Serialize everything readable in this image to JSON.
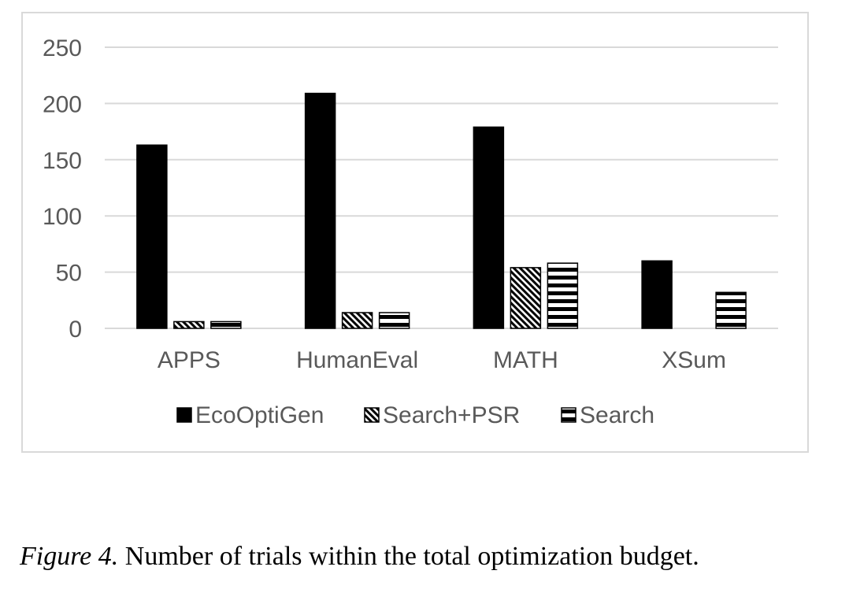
{
  "chart_data": {
    "type": "bar",
    "categories": [
      "APPS",
      "HumanEval",
      "MATH",
      "XSum"
    ],
    "series": [
      {
        "name": "EcoOptiGen",
        "values": [
          163,
          209,
          179,
          60
        ],
        "pattern": "solid"
      },
      {
        "name": "Search+PSR",
        "values": [
          6,
          14,
          54,
          null
        ],
        "pattern": "diagonal"
      },
      {
        "name": "Search",
        "values": [
          6,
          14,
          58,
          32
        ],
        "pattern": "horizontal"
      }
    ],
    "ylim": [
      0,
      250
    ],
    "yticks": [
      "0",
      "50",
      "100",
      "150",
      "200",
      "250"
    ],
    "grid": true,
    "legend": "bottom",
    "colors": {
      "bar": "#000000",
      "grid": "#d9d9d9",
      "text": "#595959",
      "frame": "#d9d9d9"
    }
  },
  "caption": {
    "label": "Figure 4.",
    "text": " Number of trials within the total optimization budget."
  }
}
